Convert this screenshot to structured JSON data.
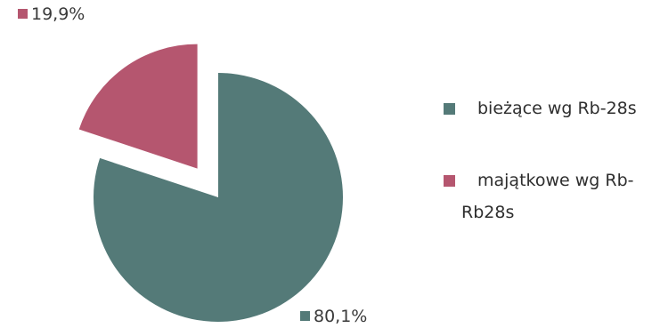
{
  "chart_data": {
    "type": "pie",
    "exploded": true,
    "slices": [
      {
        "name": "bieżące wg Rb-28s",
        "value": 80.1,
        "label": "80,1%",
        "color": "#547a78"
      },
      {
        "name": "majątkowe wg Rb-Rb28s",
        "value": 19.9,
        "label": "19,9%",
        "color": "#b5566f"
      }
    ],
    "legend": {
      "position": "right",
      "items": [
        {
          "lines": [
            "bieżące wg Rb-28s"
          ],
          "color": "#547a78"
        },
        {
          "lines": [
            "majątkowe wg Rb-",
            "Rb28s"
          ],
          "color": "#b5566f"
        }
      ]
    }
  }
}
